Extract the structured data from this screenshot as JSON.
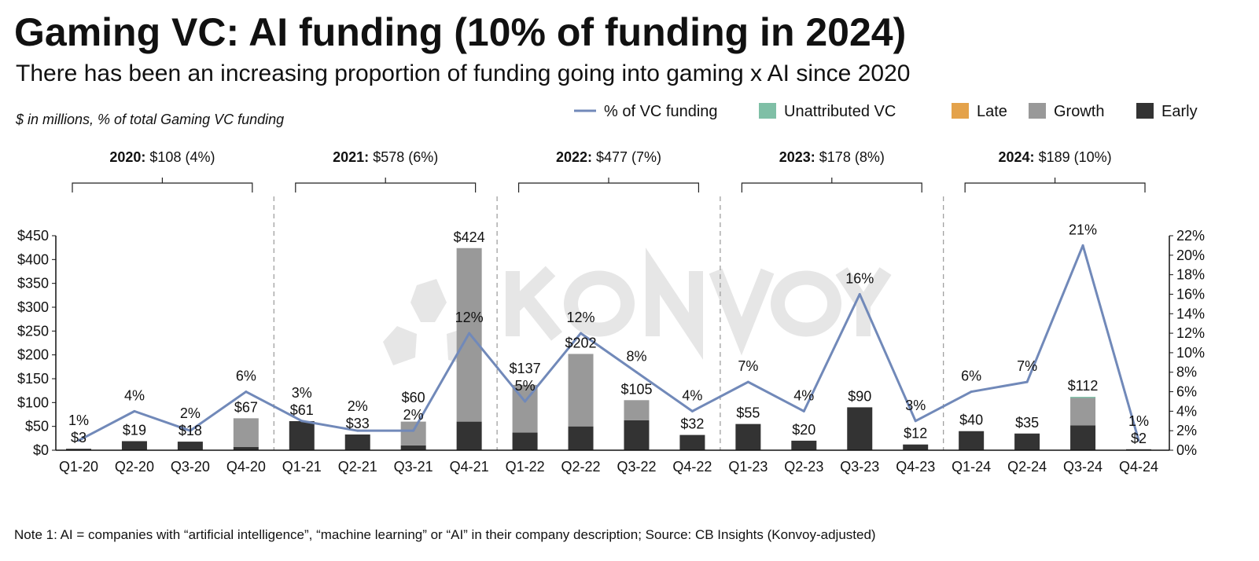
{
  "title": "Gaming VC: AI funding (10% of funding in 2024)",
  "subtitle": "There has been an increasing proportion of funding going into gaming x AI since 2020",
  "units_note": "$ in millions, % of total Gaming VC funding",
  "footnote": "Note 1: AI = companies with “artificial intelligence”, “machine learning” or “AI” in their company description; Source: CB Insights (Konvoy-adjusted)",
  "watermark": "KONVOY",
  "colors": {
    "line": "#7189b9",
    "unattributed": "#7fbfa6",
    "late": "#e4a24a",
    "growth": "#999999",
    "early": "#333333"
  },
  "year_groups": [
    {
      "year": "2020:",
      "summary": "$108 (4%)"
    },
    {
      "year": "2021:",
      "summary": "$578 (6%)"
    },
    {
      "year": "2022:",
      "summary": "$477 (7%)"
    },
    {
      "year": "2023:",
      "summary": "$178 (8%)"
    },
    {
      "year": "2024:",
      "summary": "$189 (10%)"
    }
  ],
  "chart_data": {
    "type": "bar",
    "title": "Gaming VC: AI funding (10% of funding in 2024)",
    "categories": [
      "Q1-20",
      "Q2-20",
      "Q3-20",
      "Q4-20",
      "Q1-21",
      "Q2-21",
      "Q3-21",
      "Q4-21",
      "Q1-22",
      "Q2-22",
      "Q3-22",
      "Q4-22",
      "Q1-23",
      "Q2-23",
      "Q3-23",
      "Q4-23",
      "Q1-24",
      "Q2-24",
      "Q3-24",
      "Q4-24"
    ],
    "totals": [
      3,
      19,
      18,
      67,
      61,
      33,
      60,
      424,
      137,
      202,
      105,
      32,
      55,
      20,
      90,
      12,
      40,
      35,
      112,
      2
    ],
    "total_labels": [
      "$3",
      "$19",
      "$18",
      "$67",
      "$61",
      "$33",
      "$60",
      "$424",
      "$137",
      "$202",
      "$105",
      "$32",
      "$55",
      "$20",
      "$90",
      "$12",
      "$40",
      "$35",
      "$112",
      "$2"
    ],
    "series": [
      {
        "name": "Early",
        "values": [
          3,
          19,
          18,
          7,
          61,
          33,
          10,
          60,
          37,
          50,
          63,
          32,
          55,
          20,
          90,
          12,
          40,
          35,
          52,
          2
        ]
      },
      {
        "name": "Growth",
        "values": [
          0,
          0,
          0,
          60,
          0,
          0,
          50,
          364,
          100,
          152,
          42,
          0,
          0,
          0,
          0,
          0,
          0,
          0,
          58,
          0
        ]
      },
      {
        "name": "Late",
        "values": [
          0,
          0,
          0,
          0,
          0,
          0,
          0,
          0,
          0,
          0,
          0,
          0,
          0,
          0,
          0,
          0,
          0,
          0,
          0,
          0
        ]
      },
      {
        "name": "Unattributed VC",
        "values": [
          0,
          0,
          0,
          0,
          0,
          0,
          0,
          0,
          0,
          0,
          0,
          0,
          0,
          0,
          0,
          0,
          0,
          0,
          2,
          0
        ]
      }
    ],
    "line": {
      "name": "% of VC funding",
      "values": [
        1,
        4,
        2,
        6,
        3,
        2,
        2,
        12,
        5,
        12,
        8,
        4,
        7,
        4,
        16,
        3,
        6,
        7,
        21,
        1
      ],
      "labels": [
        "1%",
        "4%",
        "2%",
        "6%",
        "3%",
        "2%",
        "2%",
        "12%",
        "5%",
        "12%",
        "8%",
        "4%",
        "7%",
        "4%",
        "16%",
        "3%",
        "6%",
        "7%",
        "21%",
        "1%"
      ]
    },
    "legend": [
      "% of VC funding",
      "Unattributed VC",
      "Late",
      "Growth",
      "Early"
    ],
    "legend_position": "top-right",
    "ylim": [
      0,
      450
    ],
    "yticks": [
      "$0",
      "$50",
      "$100",
      "$150",
      "$200",
      "$250",
      "$300",
      "$350",
      "$400",
      "$450"
    ],
    "y2lim": [
      0,
      22
    ],
    "y2ticks": [
      "0%",
      "2%",
      "4%",
      "6%",
      "8%",
      "10%",
      "12%",
      "14%",
      "16%",
      "18%",
      "20%",
      "22%"
    ],
    "grid": false
  }
}
